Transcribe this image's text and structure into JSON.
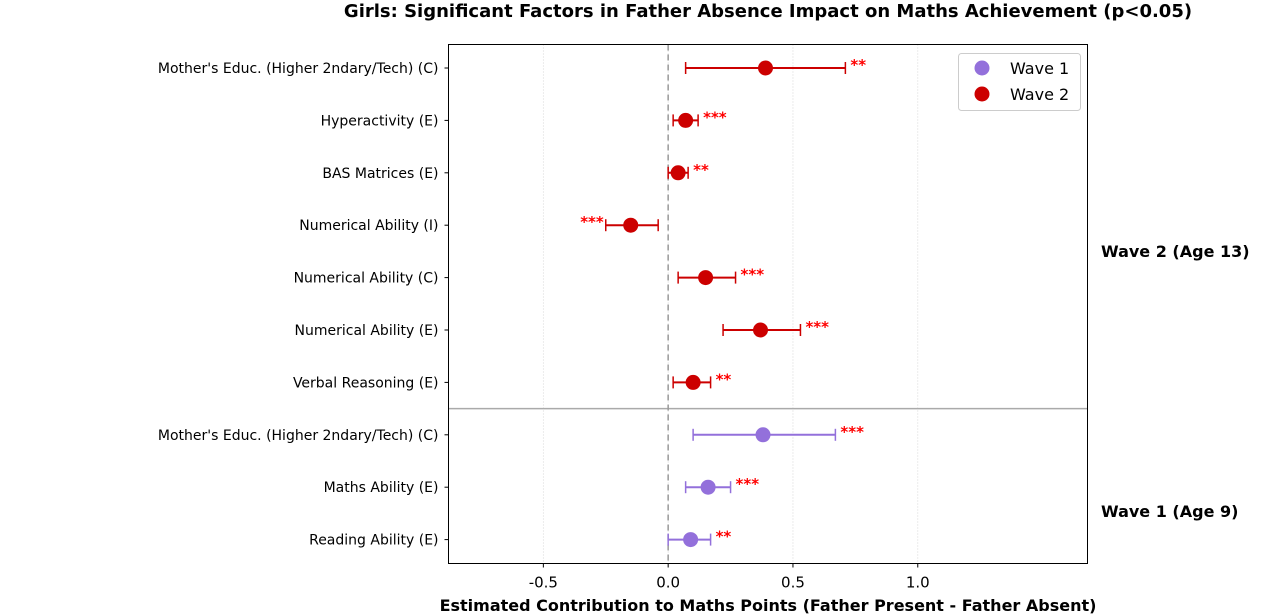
{
  "chart_data": {
    "type": "scatter",
    "title": "Girls: Significant Factors in Father Absence Impact on Maths Achievement (p<0.05)",
    "xlabel": "Estimated Contribution to Maths Points (Father Present - Father Absent)",
    "ylabel": "",
    "xlim": [
      -0.88,
      1.68
    ],
    "xticks": [
      "-0.5",
      "0.0",
      "0.5",
      "1.0"
    ],
    "xtick_values": [
      -0.5,
      0.0,
      0.5,
      1.0
    ],
    "grid": "x-dotted",
    "reference_line": 0.0,
    "legend_placement": "top-right",
    "colors": {
      "Wave 1": "#9370DB",
      "Wave 2": "#CC0000",
      "sig": "#FF0000"
    },
    "legend": [
      "Wave 1",
      "Wave 2"
    ],
    "group_labels": [
      {
        "text": "Wave 2 (Age 13)"
      },
      {
        "text": "Wave 1 (Age 9)"
      }
    ],
    "series": [
      {
        "name": "Wave 2",
        "points": [
          {
            "label": "Mother's Educ. (Higher 2ndary/Tech) (C)",
            "estimate": 0.39,
            "ci_low": 0.07,
            "ci_high": 0.71,
            "sig": "**"
          },
          {
            "label": "Hyperactivity (E)",
            "estimate": 0.07,
            "ci_low": 0.02,
            "ci_high": 0.12,
            "sig": "***"
          },
          {
            "label": "BAS Matrices (E)",
            "estimate": 0.04,
            "ci_low": 0.0,
            "ci_high": 0.08,
            "sig": "**"
          },
          {
            "label": "Numerical Ability (I)",
            "estimate": -0.15,
            "ci_low": -0.25,
            "ci_high": -0.04,
            "sig": "***"
          },
          {
            "label": "Numerical Ability (C)",
            "estimate": 0.15,
            "ci_low": 0.04,
            "ci_high": 0.27,
            "sig": "***"
          },
          {
            "label": "Numerical Ability (E)",
            "estimate": 0.37,
            "ci_low": 0.22,
            "ci_high": 0.53,
            "sig": "***"
          },
          {
            "label": "Verbal Reasoning (E)",
            "estimate": 0.1,
            "ci_low": 0.02,
            "ci_high": 0.17,
            "sig": "**"
          }
        ]
      },
      {
        "name": "Wave 1",
        "points": [
          {
            "label": "Mother's Educ. (Higher 2ndary/Tech) (C)",
            "estimate": 0.38,
            "ci_low": 0.1,
            "ci_high": 0.67,
            "sig": "***"
          },
          {
            "label": "Maths Ability (E)",
            "estimate": 0.16,
            "ci_low": 0.07,
            "ci_high": 0.25,
            "sig": "***"
          },
          {
            "label": "Reading Ability (E)",
            "estimate": 0.09,
            "ci_low": 0.0,
            "ci_high": 0.17,
            "sig": "**"
          }
        ]
      }
    ]
  }
}
